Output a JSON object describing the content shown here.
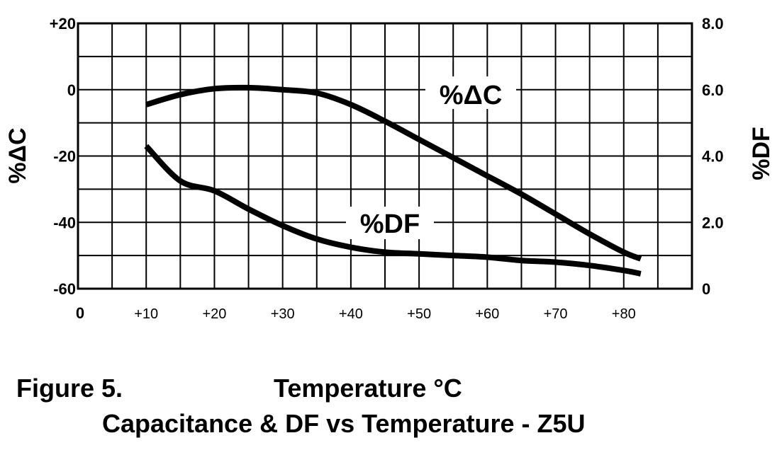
{
  "chart_data": {
    "type": "line",
    "x": {
      "ticks": [
        0,
        10,
        20,
        30,
        40,
        50,
        60,
        70,
        80
      ],
      "tick_labels": [
        "0",
        "+10",
        "+20",
        "+30",
        "+40",
        "+50",
        "+60",
        "+70",
        "+80"
      ],
      "range": [
        0,
        90
      ]
    },
    "y_left": {
      "label": "%ΔC",
      "range": [
        -60,
        20
      ],
      "ticks": [
        20,
        0,
        -20,
        -40,
        -60
      ],
      "tick_labels": [
        "+20",
        "0",
        "-20",
        "-40",
        "-60"
      ]
    },
    "y_right": {
      "label": "%DF",
      "range": [
        0,
        8
      ],
      "ticks": [
        8,
        6,
        4,
        2,
        0
      ],
      "tick_labels": [
        "8.0",
        "6.0",
        "4.0",
        "2.0",
        "0"
      ]
    },
    "grid": true,
    "series": [
      {
        "name": "%ΔC",
        "axis": "left",
        "points": [
          [
            10,
            -4.5
          ],
          [
            15,
            -1.5
          ],
          [
            20,
            0.3
          ],
          [
            25,
            0.6
          ],
          [
            30,
            0
          ],
          [
            35,
            -1
          ],
          [
            40,
            -4.5
          ],
          [
            45,
            -9.5
          ],
          [
            50,
            -15
          ],
          [
            55,
            -20.5
          ],
          [
            60,
            -26
          ],
          [
            65,
            -31.5
          ],
          [
            70,
            -37.5
          ],
          [
            75,
            -43.5
          ],
          [
            80,
            -49
          ],
          [
            82.5,
            -51
          ]
        ]
      },
      {
        "name": "%DF",
        "axis": "right",
        "points": [
          [
            10,
            4.3
          ],
          [
            15,
            3.25
          ],
          [
            20,
            2.95
          ],
          [
            25,
            2.4
          ],
          [
            30,
            1.9
          ],
          [
            35,
            1.5
          ],
          [
            40,
            1.25
          ],
          [
            45,
            1.1
          ],
          [
            50,
            1.05
          ],
          [
            55,
            1.0
          ],
          [
            60,
            0.95
          ],
          [
            65,
            0.85
          ],
          [
            70,
            0.8
          ],
          [
            75,
            0.7
          ],
          [
            80,
            0.55
          ],
          [
            82.5,
            0.45
          ]
        ]
      }
    ],
    "annotations": [
      "%ΔC",
      "%DF"
    ]
  },
  "caption": {
    "figure": "Figure 5.",
    "xlabel": "Temperature °C",
    "title": "Capacitance & DF vs Temperature - Z5U"
  }
}
